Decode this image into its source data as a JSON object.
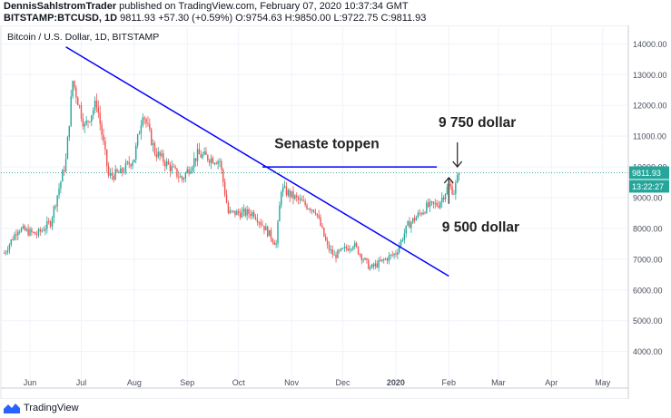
{
  "header": {
    "author": "DennisSahlstromTrader",
    "published_text": "published on TradingView.com, February 07, 2020 10:37:34 GMT",
    "symbol": "BITSTAMP:BTCUSD, 1D",
    "last": "9811.93",
    "change": "+57.30 (+0.59%)",
    "o_label": "O:",
    "o_value": "9754.63",
    "h_label": "H:",
    "h_value": "9850.00",
    "l_label": "L:",
    "l_value": "9722.75",
    "c_label": "C:",
    "c_value": "9811.93"
  },
  "footer": {
    "brand": "TradingView"
  },
  "colors": {
    "up": "#26a69a",
    "down": "#ef5350",
    "trend": "#0000ff",
    "price_line": "#26a69a",
    "price_tag": "#26a69a"
  },
  "chart_data": {
    "type": "candlestick",
    "title": "Bitcoin / U.S. Dollar, 1D, BITSTAMP",
    "ylim": [
      3400,
      14600
    ],
    "yticks": [
      4000,
      5000,
      6000,
      7000,
      8000,
      9000,
      10000,
      11000,
      12000,
      13000,
      14000
    ],
    "ytick_labels": [
      "4000.00",
      "5000.00",
      "6000.00",
      "7000.00",
      "8000.00",
      "9000.00",
      "10000.00",
      "11000.00",
      "12000.00",
      "13000.00",
      "14000.00"
    ],
    "xlim": [
      "2019-05-15",
      "2020-05-16"
    ],
    "xticks": [
      "2019-06-01",
      "2019-07-01",
      "2019-08-01",
      "2019-09-01",
      "2019-10-01",
      "2019-11-01",
      "2019-12-01",
      "2020-01-01",
      "2020-02-01",
      "2020-03-01",
      "2020-04-01",
      "2020-05-01"
    ],
    "xtick_labels": [
      "Jun",
      "Jul",
      "Aug",
      "Sep",
      "Oct",
      "Nov",
      "Dec",
      "2020",
      "Feb",
      "Mar",
      "Apr",
      "May"
    ],
    "price_keypoints": [
      [
        "2019-05-17",
        7200
      ],
      [
        "2019-05-25",
        8000
      ],
      [
        "2019-06-05",
        7800
      ],
      [
        "2019-06-13",
        8200
      ],
      [
        "2019-06-22",
        10200
      ],
      [
        "2019-06-26",
        12800
      ],
      [
        "2019-07-03",
        11300
      ],
      [
        "2019-07-10",
        12100
      ],
      [
        "2019-07-17",
        9700
      ],
      [
        "2019-07-24",
        9800
      ],
      [
        "2019-08-01",
        10300
      ],
      [
        "2019-08-06",
        11800
      ],
      [
        "2019-08-13",
        10500
      ],
      [
        "2019-08-20",
        10100
      ],
      [
        "2019-08-29",
        9600
      ],
      [
        "2019-09-07",
        10400
      ],
      [
        "2019-09-20",
        10200
      ],
      [
        "2019-09-25",
        8500
      ],
      [
        "2019-10-10",
        8500
      ],
      [
        "2019-10-23",
        7500
      ],
      [
        "2019-10-26",
        9300
      ],
      [
        "2019-11-08",
        8800
      ],
      [
        "2019-11-15",
        8600
      ],
      [
        "2019-11-22",
        7400
      ],
      [
        "2019-11-26",
        7100
      ],
      [
        "2019-12-07",
        7500
      ],
      [
        "2019-12-17",
        6700
      ],
      [
        "2020-01-01",
        7200
      ],
      [
        "2020-01-08",
        8100
      ],
      [
        "2020-01-19",
        8700
      ],
      [
        "2020-01-26",
        8800
      ],
      [
        "2020-02-01",
        9400
      ],
      [
        "2020-02-04",
        9200
      ],
      [
        "2020-02-07",
        9811.93
      ]
    ],
    "last_price": 9811.93,
    "last_price_label": "9811.93",
    "countdown_label": "13:22:27",
    "trendline": [
      [
        "2019-06-22",
        13900
      ],
      [
        "2020-02-01",
        6450
      ]
    ],
    "resistance_line": [
      [
        "2019-10-15",
        10000
      ],
      [
        "2020-01-25",
        10000
      ]
    ],
    "annotations": [
      {
        "text": "Senaste toppen",
        "x": "2019-10-22",
        "y": 10600
      },
      {
        "text": "9 750 dollar",
        "x": "2020-01-26",
        "y": 11300
      },
      {
        "text": "9 500 dollar",
        "x": "2020-01-28",
        "y": 7900
      }
    ],
    "arrows": [
      {
        "direction": "down",
        "x": "2020-02-06",
        "from": 10800,
        "to": 10000
      },
      {
        "direction": "up",
        "x": "2020-02-01",
        "from": 8800,
        "to": 9650
      }
    ]
  }
}
